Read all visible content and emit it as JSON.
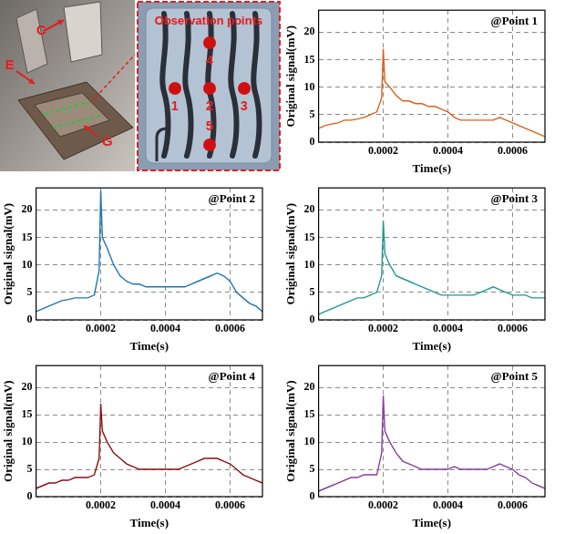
{
  "image": {
    "labels": [
      "C",
      "E",
      "G"
    ],
    "inset_title": "Observation points",
    "points": [
      "1",
      "2",
      "3",
      "4",
      "5"
    ]
  },
  "chart_data": [
    {
      "type": "line",
      "title": "@Point 1",
      "x_label": "Time(s)",
      "y_label": "Original signal(mV)",
      "x": [
        0,
        2e-05,
        4e-05,
        6e-05,
        8e-05,
        0.0001,
        0.00012,
        0.00014,
        0.00016,
        0.00018,
        0.000195,
        0.0002,
        0.000205,
        0.00022,
        0.00024,
        0.00026,
        0.00028,
        0.0003,
        0.00032,
        0.00034,
        0.00036,
        0.00038,
        0.0004,
        0.00042,
        0.00044,
        0.00046,
        0.00048,
        0.0005,
        0.00052,
        0.00054,
        0.00056,
        0.00058,
        0.0006,
        0.00062,
        0.00064,
        0.00066,
        0.00068,
        0.0007
      ],
      "values": [
        2.5,
        3,
        3.3,
        3.5,
        4,
        4,
        4.2,
        4.5,
        5,
        5.5,
        8,
        17,
        11,
        10,
        8.5,
        7.5,
        7.5,
        7,
        7,
        6.5,
        6.5,
        6,
        5.5,
        4.5,
        4,
        4,
        4,
        4,
        4,
        4,
        4.5,
        4,
        3.5,
        3,
        2.5,
        2,
        1.5,
        1
      ],
      "color": "#d9601a",
      "xlim": [
        0,
        0.0007
      ],
      "xticks": [
        0.0002,
        0.0004,
        0.0006
      ],
      "ylim": [
        0,
        24
      ],
      "yticks": [
        0,
        5,
        10,
        15,
        20
      ],
      "grid": true
    },
    {
      "type": "line",
      "title": "@Point 2",
      "x_label": "Time(s)",
      "y_label": "Original signal(mV)",
      "x": [
        0,
        2e-05,
        4e-05,
        6e-05,
        8e-05,
        0.0001,
        0.00012,
        0.00014,
        0.00016,
        0.00018,
        0.000195,
        0.0002,
        0.000205,
        0.00022,
        0.00024,
        0.00026,
        0.00028,
        0.0003,
        0.00032,
        0.00034,
        0.00036,
        0.00038,
        0.0004,
        0.00042,
        0.00044,
        0.00046,
        0.00048,
        0.0005,
        0.00052,
        0.00054,
        0.00056,
        0.00058,
        0.0006,
        0.00062,
        0.00064,
        0.00066,
        0.00068,
        0.0007
      ],
      "values": [
        1.5,
        2,
        2.5,
        3,
        3.5,
        3.7,
        4,
        4,
        4,
        4.5,
        9,
        23.5,
        15,
        13,
        10,
        8,
        7,
        6.5,
        6.5,
        6,
        6,
        6,
        6,
        6,
        6,
        6,
        6.5,
        7,
        7.5,
        8,
        8.5,
        8,
        7,
        5,
        4,
        3,
        2.5,
        1.5
      ],
      "color": "#1f74b6",
      "xlim": [
        0,
        0.0007
      ],
      "xticks": [
        0.0002,
        0.0004,
        0.0006
      ],
      "ylim": [
        0,
        24
      ],
      "yticks": [
        0,
        5,
        10,
        15,
        20
      ],
      "grid": true
    },
    {
      "type": "line",
      "title": "@Point 3",
      "x_label": "Time(s)",
      "y_label": "Original signal(mV)",
      "x": [
        0,
        2e-05,
        4e-05,
        6e-05,
        8e-05,
        0.0001,
        0.00012,
        0.00014,
        0.00016,
        0.00018,
        0.000195,
        0.0002,
        0.000205,
        0.00022,
        0.00024,
        0.00026,
        0.00028,
        0.0003,
        0.00032,
        0.00034,
        0.00036,
        0.00038,
        0.0004,
        0.00042,
        0.00044,
        0.00046,
        0.00048,
        0.0005,
        0.00052,
        0.00054,
        0.00056,
        0.00058,
        0.0006,
        0.00062,
        0.00064,
        0.00066,
        0.00068,
        0.0007
      ],
      "values": [
        1,
        1.5,
        2,
        2.5,
        3,
        3.5,
        4,
        4,
        4.5,
        5,
        8,
        18,
        12,
        10,
        8,
        7.5,
        7,
        6.5,
        6,
        5.5,
        5,
        4.5,
        4.5,
        4.5,
        4.5,
        4.5,
        4.5,
        5,
        5.5,
        6,
        5.5,
        5,
        4.5,
        4.5,
        4.5,
        4,
        4,
        4
      ],
      "color": "#1e9a8c",
      "xlim": [
        0,
        0.0007
      ],
      "xticks": [
        0.0002,
        0.0004,
        0.0006
      ],
      "ylim": [
        0,
        24
      ],
      "yticks": [
        0,
        5,
        10,
        15,
        20
      ],
      "grid": true
    },
    {
      "type": "line",
      "title": "@Point 4",
      "x_label": "Time(s)",
      "y_label": "Original signal(mV)",
      "x": [
        0,
        2e-05,
        4e-05,
        6e-05,
        8e-05,
        0.0001,
        0.00012,
        0.00014,
        0.00016,
        0.00018,
        0.000195,
        0.0002,
        0.000205,
        0.00022,
        0.00024,
        0.00026,
        0.00028,
        0.0003,
        0.00032,
        0.00034,
        0.00036,
        0.00038,
        0.0004,
        0.00042,
        0.00044,
        0.00046,
        0.00048,
        0.0005,
        0.00052,
        0.00054,
        0.00056,
        0.00058,
        0.0006,
        0.00062,
        0.00064,
        0.00066,
        0.00068,
        0.0007
      ],
      "values": [
        1.5,
        2,
        2.5,
        2.5,
        3,
        3,
        3.5,
        3.5,
        3.5,
        4,
        7,
        17,
        12,
        10,
        8,
        7,
        6,
        5.5,
        5,
        5,
        5,
        5,
        5,
        5,
        5,
        5.5,
        6,
        6.5,
        7,
        7,
        7,
        6.5,
        6,
        5,
        4,
        3.5,
        3,
        2.5
      ],
      "color": "#8b0f0f",
      "xlim": [
        0,
        0.0007
      ],
      "xticks": [
        0.0002,
        0.0004,
        0.0006
      ],
      "ylim": [
        0,
        24
      ],
      "yticks": [
        0,
        5,
        10,
        15,
        20
      ],
      "grid": true
    },
    {
      "type": "line",
      "title": "@Point 5",
      "x_label": "Time(s)",
      "y_label": "Original signal(mV)",
      "x": [
        0,
        2e-05,
        4e-05,
        6e-05,
        8e-05,
        0.0001,
        0.00012,
        0.00014,
        0.00016,
        0.00018,
        0.000195,
        0.0002,
        0.000205,
        0.00022,
        0.00024,
        0.00026,
        0.00028,
        0.0003,
        0.00032,
        0.00034,
        0.00036,
        0.00038,
        0.0004,
        0.00042,
        0.00044,
        0.00046,
        0.00048,
        0.0005,
        0.00052,
        0.00054,
        0.00056,
        0.00058,
        0.0006,
        0.00062,
        0.00064,
        0.00066,
        0.00068,
        0.0007
      ],
      "values": [
        1,
        1.5,
        2,
        2.5,
        3,
        3.5,
        3.5,
        4,
        4,
        4,
        8,
        18.5,
        12,
        10,
        8,
        6.5,
        6,
        5.5,
        5,
        5,
        5,
        5,
        5,
        5.5,
        5,
        5,
        5,
        5,
        5,
        5.5,
        6,
        5.5,
        5,
        4,
        3.5,
        2.5,
        2,
        1.5
      ],
      "color": "#8a3d9e",
      "xlim": [
        0,
        0.0007
      ],
      "xticks": [
        0.0002,
        0.0004,
        0.0006
      ],
      "ylim": [
        0,
        24
      ],
      "yticks": [
        0,
        5,
        10,
        15,
        20
      ],
      "grid": true
    }
  ]
}
